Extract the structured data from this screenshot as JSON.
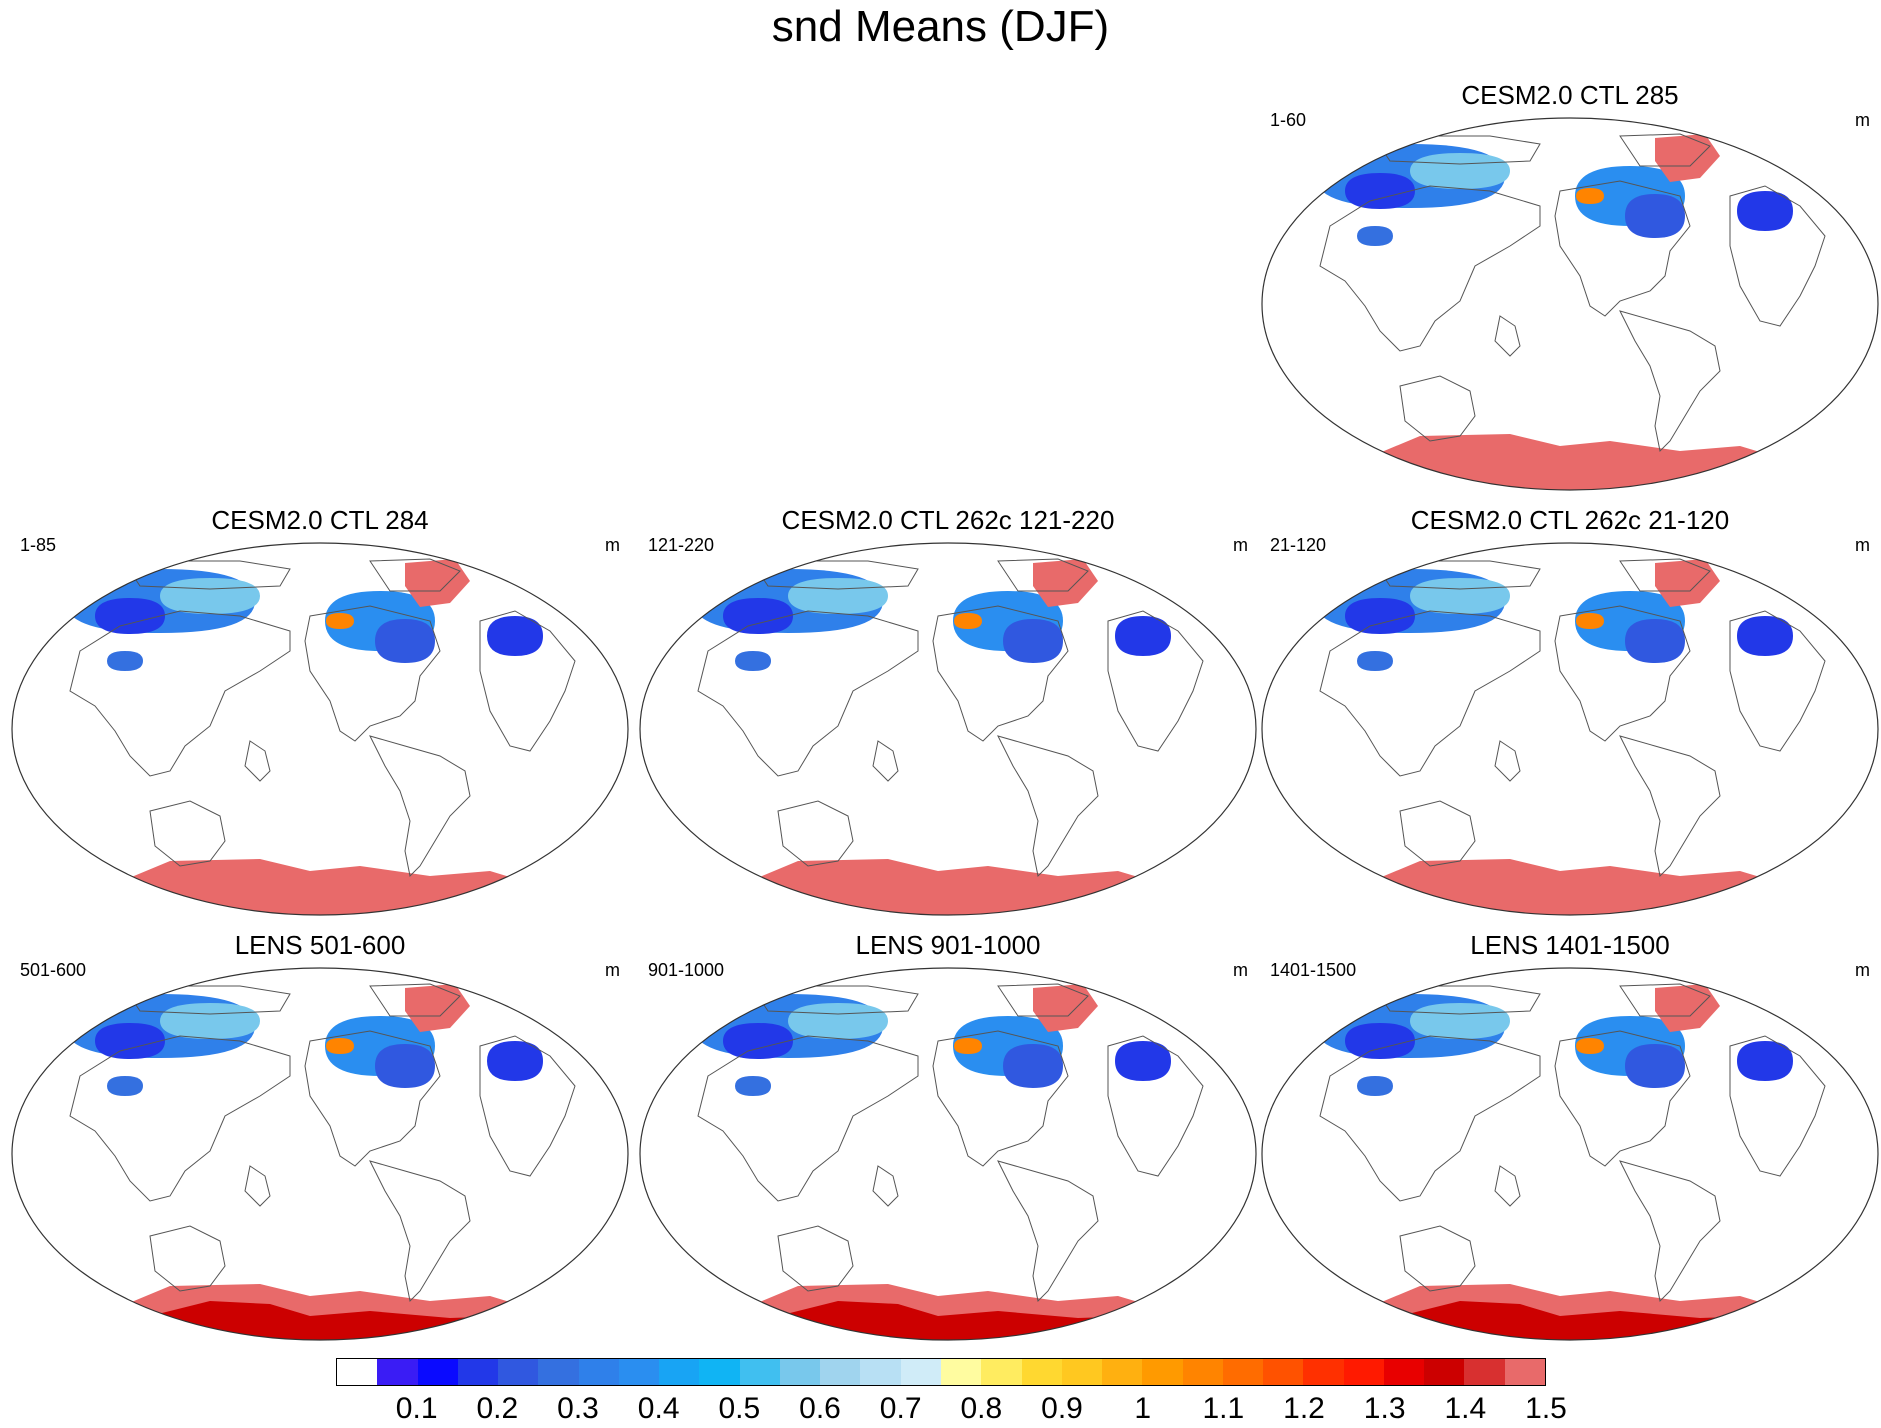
{
  "title": "snd Means (DJF)",
  "panels": [
    {
      "title": "CESM2.0 CTL 285",
      "years": "1-60",
      "units": "m",
      "antarctica": "uniform"
    },
    {
      "title": "CESM2.0 CTL 284",
      "years": "1-85",
      "units": "m",
      "antarctica": "uniform"
    },
    {
      "title": "CESM2.0 CTL 262c 121-220",
      "years": "121-220",
      "units": "m",
      "antarctica": "uniform"
    },
    {
      "title": "CESM2.0 CTL 262c 21-120",
      "years": "21-120",
      "units": "m",
      "antarctica": "uniform"
    },
    {
      "title": "LENS 501-600",
      "years": "501-600",
      "units": "m",
      "antarctica": "deep"
    },
    {
      "title": "LENS 901-1000",
      "years": "901-1000",
      "units": "m",
      "antarctica": "deep"
    },
    {
      "title": "LENS 1401-1500",
      "years": "1401-1500",
      "units": "m",
      "antarctica": "deep"
    }
  ],
  "colorbar": {
    "labels": [
      "0.1",
      "0.2",
      "0.3",
      "0.4",
      "0.5",
      "0.6",
      "0.7",
      "0.8",
      "0.9",
      "1",
      "1.1",
      "1.2",
      "1.3",
      "1.4",
      "1.5"
    ],
    "colors": [
      "#ffffff",
      "#3a1cf5",
      "#0a0aff",
      "#2238e8",
      "#3058e0",
      "#3470e0",
      "#2f80ea",
      "#2a8ef0",
      "#18a4f4",
      "#10b4f4",
      "#40bff0",
      "#78c8ec",
      "#a0d4ee",
      "#b8e0f4",
      "#d0ecf8",
      "#fffca0",
      "#ffec60",
      "#ffd830",
      "#ffc820",
      "#ffb010",
      "#ff9a00",
      "#ff8400",
      "#ff6c00",
      "#ff5200",
      "#ff3000",
      "#ff1a00",
      "#e80000",
      "#cc0000",
      "#d83030",
      "#e86a6a"
    ]
  }
}
